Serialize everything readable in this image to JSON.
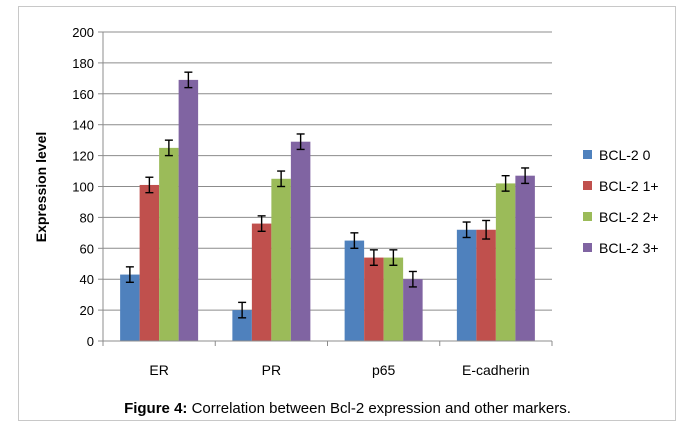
{
  "chart_data": {
    "type": "bar",
    "categories": [
      "ER",
      "PR",
      "p65",
      "E-cadherin"
    ],
    "series": [
      {
        "name": "BCL-2 0",
        "color": "#4f81bd",
        "values": [
          43,
          20,
          65,
          72
        ],
        "errors": [
          5,
          5,
          5,
          5
        ]
      },
      {
        "name": "BCL-2 1+",
        "color": "#c0504d",
        "values": [
          101,
          76,
          54,
          72
        ],
        "errors": [
          5,
          5,
          5,
          6
        ]
      },
      {
        "name": "BCL-2 2+",
        "color": "#9bbb59",
        "values": [
          125,
          105,
          54,
          102
        ],
        "errors": [
          5,
          5,
          5,
          5
        ]
      },
      {
        "name": "BCL-2 3+",
        "color": "#8064a2",
        "values": [
          169,
          129,
          40,
          107
        ],
        "errors": [
          5,
          5,
          5,
          5
        ]
      }
    ],
    "ylabel": "Expression level",
    "xlabel": "",
    "ylim": [
      0,
      200
    ],
    "yticks": [
      0,
      20,
      40,
      60,
      80,
      100,
      120,
      140,
      160,
      180,
      200
    ],
    "grid": true,
    "legend_position": "right"
  },
  "caption": {
    "label": "Figure 4:",
    "text": " Correlation between Bcl-2 expression and other markers."
  }
}
